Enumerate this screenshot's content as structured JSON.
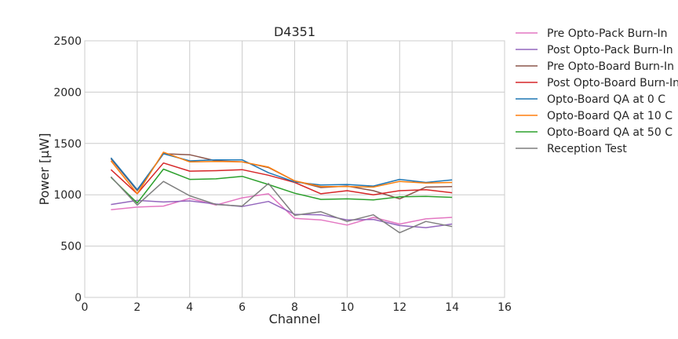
{
  "chart_data": {
    "type": "line",
    "title": "D4351",
    "xlabel": "Channel",
    "ylabel": "Power [μW]",
    "xlim": [
      0,
      16
    ],
    "ylim": [
      0,
      2500
    ],
    "xticks": [
      "0",
      "2",
      "4",
      "6",
      "8",
      "10",
      "12",
      "14",
      "16"
    ],
    "yticks": [
      "0",
      "500",
      "1000",
      "1500",
      "2000",
      "2500"
    ],
    "grid": true,
    "legend_position": "outside-right",
    "x": [
      1,
      2,
      3,
      4,
      5,
      6,
      7,
      8,
      9,
      10,
      11,
      12,
      13,
      14
    ],
    "series": [
      {
        "name": "Pre Opto-Pack Burn-In",
        "color": "#e377c2",
        "values": [
          855,
          880,
          890,
          965,
          900,
          970,
          1010,
          770,
          755,
          705,
          780,
          715,
          765,
          780
        ]
      },
      {
        "name": "Post Opto-Pack Burn-In",
        "color": "#9467bd",
        "values": [
          905,
          945,
          930,
          940,
          910,
          885,
          935,
          810,
          805,
          755,
          760,
          700,
          680,
          715
        ]
      },
      {
        "name": "Pre Opto-Board Burn-In",
        "color": "#8c564b",
        "values": [
          1350,
          1040,
          1400,
          1390,
          1330,
          1320,
          1265,
          1135,
          1070,
          1085,
          1040,
          960,
          1075,
          1080
        ]
      },
      {
        "name": "Post Opto-Board Burn-In",
        "color": "#d62728",
        "values": [
          1245,
          1010,
          1310,
          1230,
          1235,
          1245,
          1190,
          1120,
          1010,
          1040,
          1000,
          1040,
          1050,
          1020
        ]
      },
      {
        "name": "Opto-Board QA at 0 C",
        "color": "#1f77b4",
        "values": [
          1360,
          1050,
          1400,
          1330,
          1340,
          1340,
          1215,
          1125,
          1095,
          1100,
          1085,
          1150,
          1120,
          1145
        ]
      },
      {
        "name": "Opto-Board QA at 10 C",
        "color": "#ff7f0e",
        "values": [
          1330,
          1010,
          1415,
          1320,
          1325,
          1320,
          1270,
          1135,
          1080,
          1080,
          1075,
          1130,
          1115,
          1120
        ]
      },
      {
        "name": "Opto-Board QA at 50 C",
        "color": "#2ca02c",
        "values": [
          1170,
          920,
          1250,
          1150,
          1155,
          1180,
          1100,
          1015,
          955,
          960,
          950,
          980,
          985,
          975
        ]
      },
      {
        "name": "Reception Test",
        "color": "#7f7f7f",
        "values": [
          1175,
          900,
          1130,
          990,
          905,
          890,
          1110,
          800,
          835,
          740,
          805,
          630,
          740,
          690
        ]
      }
    ]
  }
}
